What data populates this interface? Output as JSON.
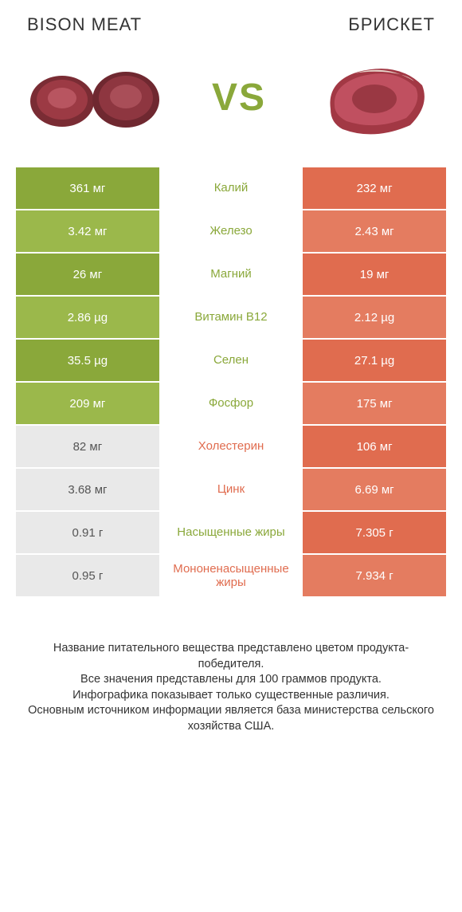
{
  "header": {
    "left": "BISON MEAT",
    "right": "БРИСКЕТ"
  },
  "vs": "VS",
  "colors": {
    "left": "#8aa83a",
    "leftAlt": "#9bb84b",
    "right": "#e06c4f",
    "rightAlt": "#e47c60",
    "leftLose": "#e9e9e9",
    "leftLoseText": "#555555",
    "midGreen": "#8aa83a",
    "midRed": "#e06c4f",
    "vsText": "#8aa83a"
  },
  "rows": [
    {
      "nutrient": "Калий",
      "left": "361 мг",
      "right": "232 мг",
      "winner": "left"
    },
    {
      "nutrient": "Железо",
      "left": "3.42 мг",
      "right": "2.43 мг",
      "winner": "left"
    },
    {
      "nutrient": "Магний",
      "left": "26 мг",
      "right": "19 мг",
      "winner": "left"
    },
    {
      "nutrient": "Витамин B12",
      "left": "2.86 µg",
      "right": "2.12 µg",
      "winner": "left"
    },
    {
      "nutrient": "Селен",
      "left": "35.5 µg",
      "right": "27.1 µg",
      "winner": "left"
    },
    {
      "nutrient": "Фосфор",
      "left": "209 мг",
      "right": "175 мг",
      "winner": "left"
    },
    {
      "nutrient": "Холестерин",
      "left": "82 мг",
      "right": "106 мг",
      "winner": "right"
    },
    {
      "nutrient": "Цинк",
      "left": "3.68 мг",
      "right": "6.69 мг",
      "winner": "right"
    },
    {
      "nutrient": "Насыщенные жиры",
      "left": "0.91 г",
      "right": "7.305 г",
      "winner": "right",
      "midWinner": "left"
    },
    {
      "nutrient": "Мононенасыщенные жиры",
      "left": "0.95 г",
      "right": "7.934 г",
      "winner": "right"
    }
  ],
  "footer": [
    "Название питательного вещества представлено цветом продукта-победителя.",
    "Все значения представлены для 100 граммов продукта.",
    "Инфографика показывает только существенные различия.",
    "Основным источником информации является база министерства сельского хозяйства США."
  ]
}
